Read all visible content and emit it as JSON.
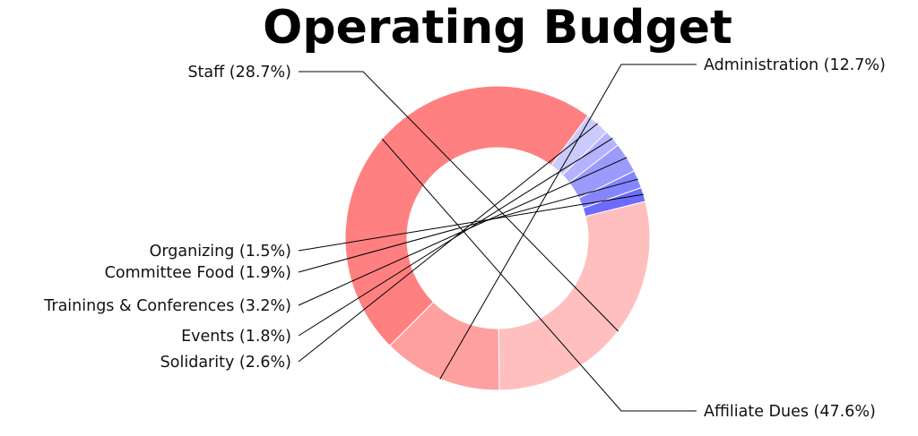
{
  "chart_data": {
    "type": "pie",
    "variant": "donut",
    "title": "Operating Budget",
    "legend": "none",
    "slices": [
      {
        "label": "Affiliate Dues",
        "display": "Affiliate Dues (47.6%)",
        "value": 47.6,
        "color": "#ff8080"
      },
      {
        "label": "Administration",
        "display": "Administration (12.7%)",
        "value": 12.7,
        "color": "#ffa0a0"
      },
      {
        "label": "Staff",
        "display": "Staff (28.7%)",
        "value": 28.7,
        "color": "#ffbfbf"
      },
      {
        "label": "Organizing",
        "display": "Organizing (1.5%)",
        "value": 1.5,
        "color": "#6b6bfc"
      },
      {
        "label": "Committee Food",
        "display": "Committee Food (1.9%)",
        "value": 1.9,
        "color": "#8585fd"
      },
      {
        "label": "Trainings & Conferences",
        "display": "Trainings & Conferences (3.2%)",
        "value": 3.2,
        "color": "#9b9bfd"
      },
      {
        "label": "Events",
        "display": "Events (1.8%)",
        "value": 1.8,
        "color": "#b3b3fe"
      },
      {
        "label": "Solidarity",
        "display": "Solidarity (2.6%)",
        "value": 2.6,
        "color": "#cacafe"
      }
    ]
  }
}
